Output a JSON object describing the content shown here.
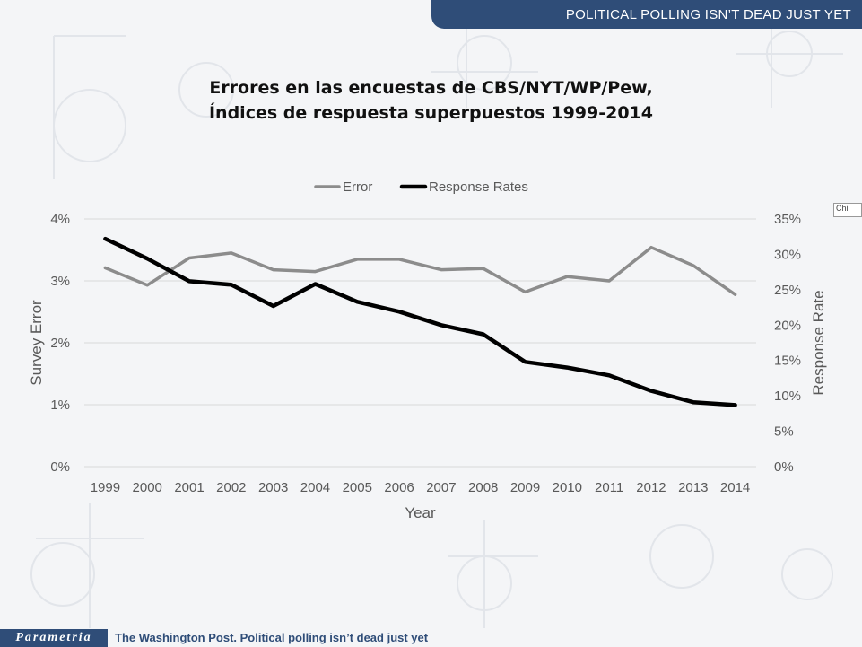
{
  "header": {
    "banner_text": "POLITICAL POLLING ISN’T DEAD JUST YET"
  },
  "footer": {
    "logo_text": "Parametria",
    "source_text": "The Washington Post. Political polling isn’t dead just yet"
  },
  "side_tag": {
    "text": "Chi"
  },
  "colors": {
    "banner": "#2f4d78",
    "error_series": "#8c8c8c",
    "response_series": "#000000",
    "axis_text": "#595959",
    "gridline": "#d9d9d9"
  },
  "chart_data": {
    "type": "line",
    "title": "Errores en las encuestas de CBS/NYT/WP/Pew,",
    "subtitle": "Índices  de respuesta superpuestos 1999-2014",
    "xlabel": "Year",
    "ylabel_left": "Survey Error",
    "ylabel_right": "Response Rate",
    "x": [
      "1999",
      "2000",
      "2001",
      "2002",
      "2003",
      "2004",
      "2005",
      "2006",
      "2007",
      "2008",
      "2009",
      "2010",
      "2011",
      "2012",
      "2013",
      "2014"
    ],
    "ylim_left": [
      0,
      4
    ],
    "ylim_right": [
      0,
      35
    ],
    "yticks_left": [
      "0%",
      "1%",
      "2%",
      "3%",
      "4%"
    ],
    "yticks_right": [
      "0%",
      "5%",
      "10%",
      "15%",
      "20%",
      "25%",
      "30%",
      "35%"
    ],
    "grid": true,
    "legend_position": "top-center",
    "series": [
      {
        "name": "Error",
        "axis": "left",
        "color": "#8c8c8c",
        "values": [
          3.21,
          2.93,
          3.37,
          3.45,
          3.18,
          3.15,
          3.35,
          3.35,
          3.18,
          3.2,
          2.82,
          3.07,
          3.0,
          3.54,
          3.25,
          2.78
        ]
      },
      {
        "name": "Response Rates",
        "axis": "right",
        "color": "#000000",
        "values": [
          32.2,
          29.4,
          26.2,
          25.7,
          22.7,
          25.8,
          23.3,
          21.9,
          20.0,
          18.7,
          14.8,
          14.0,
          12.9,
          10.7,
          9.1,
          8.7
        ]
      }
    ]
  }
}
